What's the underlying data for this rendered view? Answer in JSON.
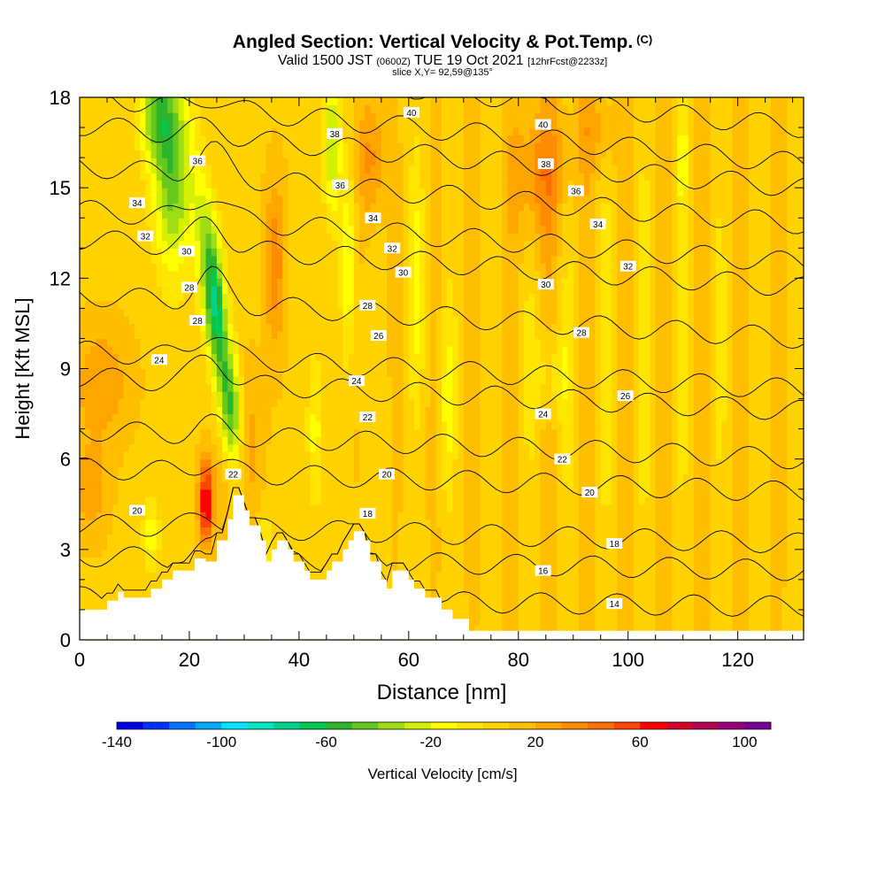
{
  "title": {
    "main": "Angled Section: Vertical Velocity & Pot.Temp.",
    "main_units": "(C)",
    "valid_prefix": "Valid 1500 JST",
    "valid_utc": "(0600Z)",
    "valid_date": "TUE 19 Oct 2021",
    "forecast": "[12hrFcst@2233z]",
    "slice": "slice X,Y= 92,59@135°"
  },
  "chart_data": {
    "type": "heatmap",
    "xlabel": "Distance [nm]",
    "ylabel": "Height [Kft MSL]",
    "xlim": [
      0,
      132
    ],
    "ylim": [
      0,
      18
    ],
    "x_ticks": [
      0,
      20,
      40,
      60,
      80,
      100,
      120
    ],
    "y_ticks": [
      0,
      3,
      6,
      9,
      12,
      15,
      18
    ],
    "grid": false,
    "colorbar": {
      "label": "Vertical Velocity [cm/s]",
      "range": [
        -140,
        120
      ],
      "step": 10,
      "tick_labels": [
        -140,
        -100,
        -60,
        -20,
        20,
        60,
        100
      ],
      "colors": [
        "#0000e6",
        "#0033ff",
        "#0073ff",
        "#00a8ff",
        "#00e6ff",
        "#00e6c0",
        "#00d28c",
        "#00c850",
        "#2db42d",
        "#64c81e",
        "#a0dc14",
        "#d2f000",
        "#ffff00",
        "#ffe600",
        "#ffd200",
        "#ffbe00",
        "#ffa500",
        "#ff8c00",
        "#ff6e00",
        "#ff4600",
        "#ff0000",
        "#d20028",
        "#b40050",
        "#960078",
        "#780096"
      ]
    },
    "theta_contours_C": [
      14,
      16,
      18,
      20,
      22,
      24,
      26,
      28,
      30,
      32,
      34,
      36,
      38,
      40
    ],
    "contour_labels": [
      {
        "text": "40",
        "x": 60.5,
        "y": 17.5
      },
      {
        "text": "40",
        "x": 84.5,
        "y": 17.1
      },
      {
        "text": "38",
        "x": 46.5,
        "y": 16.8
      },
      {
        "text": "38",
        "x": 85,
        "y": 15.8
      },
      {
        "text": "36",
        "x": 21.5,
        "y": 15.9
      },
      {
        "text": "36",
        "x": 47.5,
        "y": 15.1
      },
      {
        "text": "36",
        "x": 90.5,
        "y": 14.9
      },
      {
        "text": "34",
        "x": 10.5,
        "y": 14.5
      },
      {
        "text": "34",
        "x": 53.5,
        "y": 14.0
      },
      {
        "text": "34",
        "x": 94.5,
        "y": 13.8
      },
      {
        "text": "32",
        "x": 12,
        "y": 13.4
      },
      {
        "text": "32",
        "x": 57,
        "y": 13.0
      },
      {
        "text": "32",
        "x": 100,
        "y": 12.4
      },
      {
        "text": "30",
        "x": 19.5,
        "y": 12.9
      },
      {
        "text": "30",
        "x": 59,
        "y": 12.2
      },
      {
        "text": "30",
        "x": 85,
        "y": 11.8
      },
      {
        "text": "28",
        "x": 20,
        "y": 11.7
      },
      {
        "text": "28",
        "x": 21.5,
        "y": 10.6
      },
      {
        "text": "28",
        "x": 52.5,
        "y": 11.1
      },
      {
        "text": "28",
        "x": 91.5,
        "y": 10.2
      },
      {
        "text": "26",
        "x": 54.5,
        "y": 10.1
      },
      {
        "text": "26",
        "x": 99.5,
        "y": 8.1
      },
      {
        "text": "24",
        "x": 14.5,
        "y": 9.3
      },
      {
        "text": "24",
        "x": 50.5,
        "y": 8.6
      },
      {
        "text": "24",
        "x": 84.5,
        "y": 7.5
      },
      {
        "text": "22",
        "x": 28,
        "y": 5.5
      },
      {
        "text": "22",
        "x": 52.5,
        "y": 7.4
      },
      {
        "text": "22",
        "x": 88,
        "y": 6.0
      },
      {
        "text": "20",
        "x": 10.5,
        "y": 4.3
      },
      {
        "text": "20",
        "x": 56,
        "y": 5.5
      },
      {
        "text": "20",
        "x": 93,
        "y": 4.9
      },
      {
        "text": "18",
        "x": 52.5,
        "y": 4.2
      },
      {
        "text": "18",
        "x": 97.5,
        "y": 3.2
      },
      {
        "text": "16",
        "x": 84.5,
        "y": 2.3
      },
      {
        "text": "14",
        "x": 97.5,
        "y": 1.2
      }
    ],
    "terrain_profile": [
      [
        0,
        1
      ],
      [
        5,
        1
      ],
      [
        5,
        1.3
      ],
      [
        7,
        1.3
      ],
      [
        7,
        1.6
      ],
      [
        8,
        1.6
      ],
      [
        8,
        1.4
      ],
      [
        13,
        1.4
      ],
      [
        13,
        1.7
      ],
      [
        15,
        1.7
      ],
      [
        15,
        2
      ],
      [
        17,
        2
      ],
      [
        17,
        2.3
      ],
      [
        21,
        2.3
      ],
      [
        21,
        2.7
      ],
      [
        23,
        2.7
      ],
      [
        23,
        2.6
      ],
      [
        25,
        2.6
      ],
      [
        25,
        3.3
      ],
      [
        27,
        3.3
      ],
      [
        27,
        4
      ],
      [
        28,
        4
      ],
      [
        28,
        4.8
      ],
      [
        30,
        4.8
      ],
      [
        30,
        4.3
      ],
      [
        31,
        4.3
      ],
      [
        31,
        3.8
      ],
      [
        33,
        3.8
      ],
      [
        33,
        3.3
      ],
      [
        34,
        3.3
      ],
      [
        34,
        2.6
      ],
      [
        35,
        2.6
      ],
      [
        35,
        3.0
      ],
      [
        36,
        3.0
      ],
      [
        36,
        3.3
      ],
      [
        38,
        3.3
      ],
      [
        38,
        3.0
      ],
      [
        39,
        3.0
      ],
      [
        39,
        2.6
      ],
      [
        41,
        2.6
      ],
      [
        41,
        2.3
      ],
      [
        42,
        2.3
      ],
      [
        42,
        2.0
      ],
      [
        45,
        2.0
      ],
      [
        45,
        2.3
      ],
      [
        46,
        2.3
      ],
      [
        46,
        2.6
      ],
      [
        48,
        2.6
      ],
      [
        48,
        3.0
      ],
      [
        49,
        3.0
      ],
      [
        49,
        3.3
      ],
      [
        50,
        3.3
      ],
      [
        50,
        3.6
      ],
      [
        52,
        3.6
      ],
      [
        52,
        3.3
      ],
      [
        53,
        3.3
      ],
      [
        53,
        2.6
      ],
      [
        55,
        2.6
      ],
      [
        55,
        2.0
      ],
      [
        56,
        2.0
      ],
      [
        56,
        1.7
      ],
      [
        57,
        1.7
      ],
      [
        57,
        2.3
      ],
      [
        60,
        2.3
      ],
      [
        60,
        2.0
      ],
      [
        61,
        2.0
      ],
      [
        61,
        1.7
      ],
      [
        63,
        1.7
      ],
      [
        63,
        1.4
      ],
      [
        66,
        1.4
      ],
      [
        66,
        1.0
      ],
      [
        68,
        1.0
      ],
      [
        68,
        0.7
      ],
      [
        71,
        0.7
      ],
      [
        71,
        0.3
      ],
      [
        132,
        0.3
      ]
    ],
    "notes_on_field": "Strong downdraft band (~-60 to -100 cm/s) near x=22-28 from 6 to 14 kft over the ridge; updraft core (~60 cm/s) near x=23, 3-6 kft; updraft band ~35 nm aloft; mostly weak ascent (0-20 cm/s) east of 60 nm."
  }
}
